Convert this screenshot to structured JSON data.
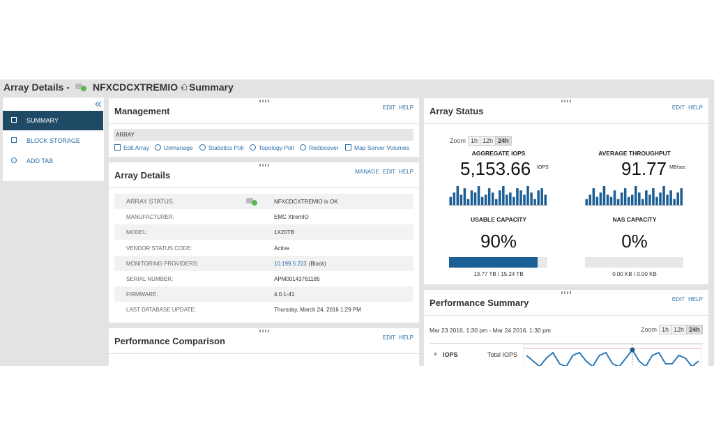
{
  "header": {
    "title": "Array Details -",
    "array_name": "NFXCDCXTREMIO -",
    "page": "Summary"
  },
  "sidebar": {
    "items": [
      "SUMMARY",
      "BLOCK STORAGE",
      "ADD TAB"
    ]
  },
  "management": {
    "title": "Management",
    "links": [
      "EDIT",
      "HELP"
    ],
    "section": "ARRAY",
    "actions": [
      "Edit Array",
      "Unmanage",
      "Statistics Poll",
      "Topology Poll",
      "Rediscover",
      "Map Server Volumes"
    ]
  },
  "array_details": {
    "title": "Array Details",
    "links": [
      "MANAGE",
      "EDIT",
      "HELP"
    ],
    "rows": [
      {
        "label": "ARRAY STATUS",
        "value": "NFXCDCXTREMIO is OK"
      },
      {
        "label": "MANUFACTURER:",
        "value": "EMC XtremIO"
      },
      {
        "label": "MODEL:",
        "value": "1X20TB"
      },
      {
        "label": "VENDOR STATUS CODE:",
        "value": "Active"
      },
      {
        "label": "MONITORING PROVIDERS:",
        "value": "10.199.5.223",
        "suffix": "(Block)"
      },
      {
        "label": "SERIAL NUMBER:",
        "value": "APM00143761185"
      },
      {
        "label": "FIRMWARE:",
        "value": "4.0.1-41"
      },
      {
        "label": "LAST DATABASE UPDATE:",
        "value": "Thursday, March 24, 2016 1:29 PM"
      }
    ]
  },
  "performance_comparison": {
    "title": "Performance Comparison",
    "links": [
      "EDIT",
      "HELP"
    ]
  },
  "array_status": {
    "title": "Array Status",
    "links": [
      "EDIT",
      "HELP"
    ],
    "zoom_label": "Zoom",
    "zoom_options": [
      "1h",
      "12h",
      "24h"
    ],
    "metrics": [
      {
        "label": "AGGREGATE IOPS",
        "value": "5,153.66",
        "unit": "IOPS",
        "bars": [
          4,
          6,
          9,
          5,
          8,
          3,
          7,
          6,
          9,
          4,
          5,
          8,
          6,
          3,
          7,
          9,
          5,
          6,
          4,
          8,
          7,
          5,
          9,
          6,
          3,
          7,
          8,
          5
        ]
      },
      {
        "label": "AVERAGE THROUGHPUT",
        "value": "91.77",
        "unit": "MB/sec",
        "bars": [
          3,
          5,
          8,
          4,
          6,
          9,
          5,
          4,
          7,
          3,
          6,
          8,
          4,
          5,
          9,
          6,
          3,
          7,
          5,
          8,
          4,
          6,
          9,
          5,
          7,
          3,
          6,
          8
        ]
      }
    ],
    "capacities": [
      {
        "label": "USABLE CAPACITY",
        "percent": 90,
        "percent_label": "90%",
        "detail": "13.77 TB / 15.24 TB"
      },
      {
        "label": "NAS CAPACITY",
        "percent": 0,
        "percent_label": "0%",
        "detail": "0.00 KB / 0.00 KB"
      }
    ]
  },
  "performance_summary": {
    "title": "Performance Summary",
    "links": [
      "EDIT",
      "HELP"
    ],
    "range": "Mar 23 2016, 1:30 pm - Mar 24 2016, 1:30 pm",
    "zoom_label": "Zoom",
    "zoom_options": [
      "1h",
      "12h",
      "24h"
    ],
    "metric": "IOPS",
    "series_name": "Total IOPS",
    "values": [
      6,
      4,
      2,
      5,
      7,
      3,
      2,
      6,
      7,
      4,
      2,
      6,
      7,
      3,
      2,
      5,
      8,
      4,
      2,
      6,
      7,
      3,
      3,
      6,
      5,
      2,
      4
    ]
  }
}
